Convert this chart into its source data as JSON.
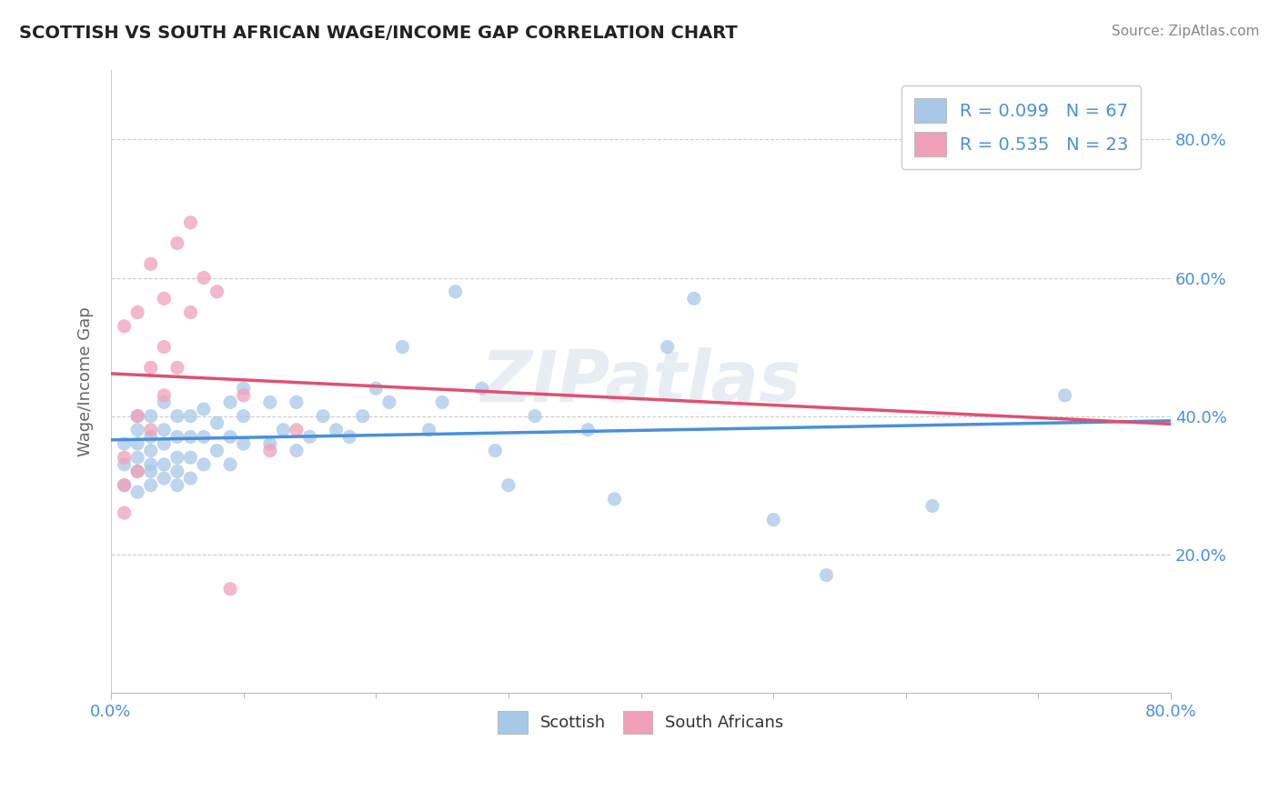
{
  "title": "SCOTTISH VS SOUTH AFRICAN WAGE/INCOME GAP CORRELATION CHART",
  "source": "Source: ZipAtlas.com",
  "ylabel": "Wage/Income Gap",
  "xlim": [
    0.0,
    0.8
  ],
  "ylim": [
    0.0,
    0.9
  ],
  "ytick_positions": [
    0.2,
    0.4,
    0.6,
    0.8
  ],
  "blue_color": "#a8c8e8",
  "pink_color": "#f0a0b8",
  "blue_line_color": "#4a90d9",
  "pink_line_color": "#e05070",
  "watermark": "ZIPatlas",
  "blue_scatter_x": [
    0.01,
    0.01,
    0.01,
    0.02,
    0.02,
    0.02,
    0.02,
    0.02,
    0.02,
    0.03,
    0.03,
    0.03,
    0.03,
    0.03,
    0.03,
    0.04,
    0.04,
    0.04,
    0.04,
    0.04,
    0.05,
    0.05,
    0.05,
    0.05,
    0.05,
    0.06,
    0.06,
    0.06,
    0.06,
    0.07,
    0.07,
    0.07,
    0.08,
    0.08,
    0.09,
    0.09,
    0.09,
    0.1,
    0.1,
    0.1,
    0.12,
    0.12,
    0.13,
    0.14,
    0.14,
    0.15,
    0.16,
    0.17,
    0.18,
    0.19,
    0.2,
    0.21,
    0.22,
    0.24,
    0.25,
    0.26,
    0.28,
    0.29,
    0.3,
    0.32,
    0.36,
    0.38,
    0.42,
    0.44,
    0.5,
    0.54,
    0.62,
    0.72
  ],
  "blue_scatter_y": [
    0.3,
    0.33,
    0.36,
    0.29,
    0.32,
    0.34,
    0.36,
    0.38,
    0.4,
    0.3,
    0.32,
    0.33,
    0.35,
    0.37,
    0.4,
    0.31,
    0.33,
    0.36,
    0.38,
    0.42,
    0.3,
    0.32,
    0.34,
    0.37,
    0.4,
    0.31,
    0.34,
    0.37,
    0.4,
    0.33,
    0.37,
    0.41,
    0.35,
    0.39,
    0.33,
    0.37,
    0.42,
    0.36,
    0.4,
    0.44,
    0.36,
    0.42,
    0.38,
    0.35,
    0.42,
    0.37,
    0.4,
    0.38,
    0.37,
    0.4,
    0.44,
    0.42,
    0.5,
    0.38,
    0.42,
    0.58,
    0.44,
    0.35,
    0.3,
    0.4,
    0.38,
    0.28,
    0.5,
    0.57,
    0.25,
    0.17,
    0.27,
    0.43
  ],
  "pink_scatter_x": [
    0.01,
    0.01,
    0.01,
    0.01,
    0.02,
    0.02,
    0.02,
    0.03,
    0.03,
    0.03,
    0.04,
    0.04,
    0.04,
    0.05,
    0.05,
    0.06,
    0.06,
    0.07,
    0.08,
    0.09,
    0.1,
    0.12,
    0.14
  ],
  "pink_scatter_y": [
    0.26,
    0.3,
    0.34,
    0.53,
    0.32,
    0.4,
    0.55,
    0.38,
    0.47,
    0.62,
    0.43,
    0.5,
    0.57,
    0.47,
    0.65,
    0.55,
    0.68,
    0.6,
    0.58,
    0.15,
    0.43,
    0.35,
    0.38
  ]
}
